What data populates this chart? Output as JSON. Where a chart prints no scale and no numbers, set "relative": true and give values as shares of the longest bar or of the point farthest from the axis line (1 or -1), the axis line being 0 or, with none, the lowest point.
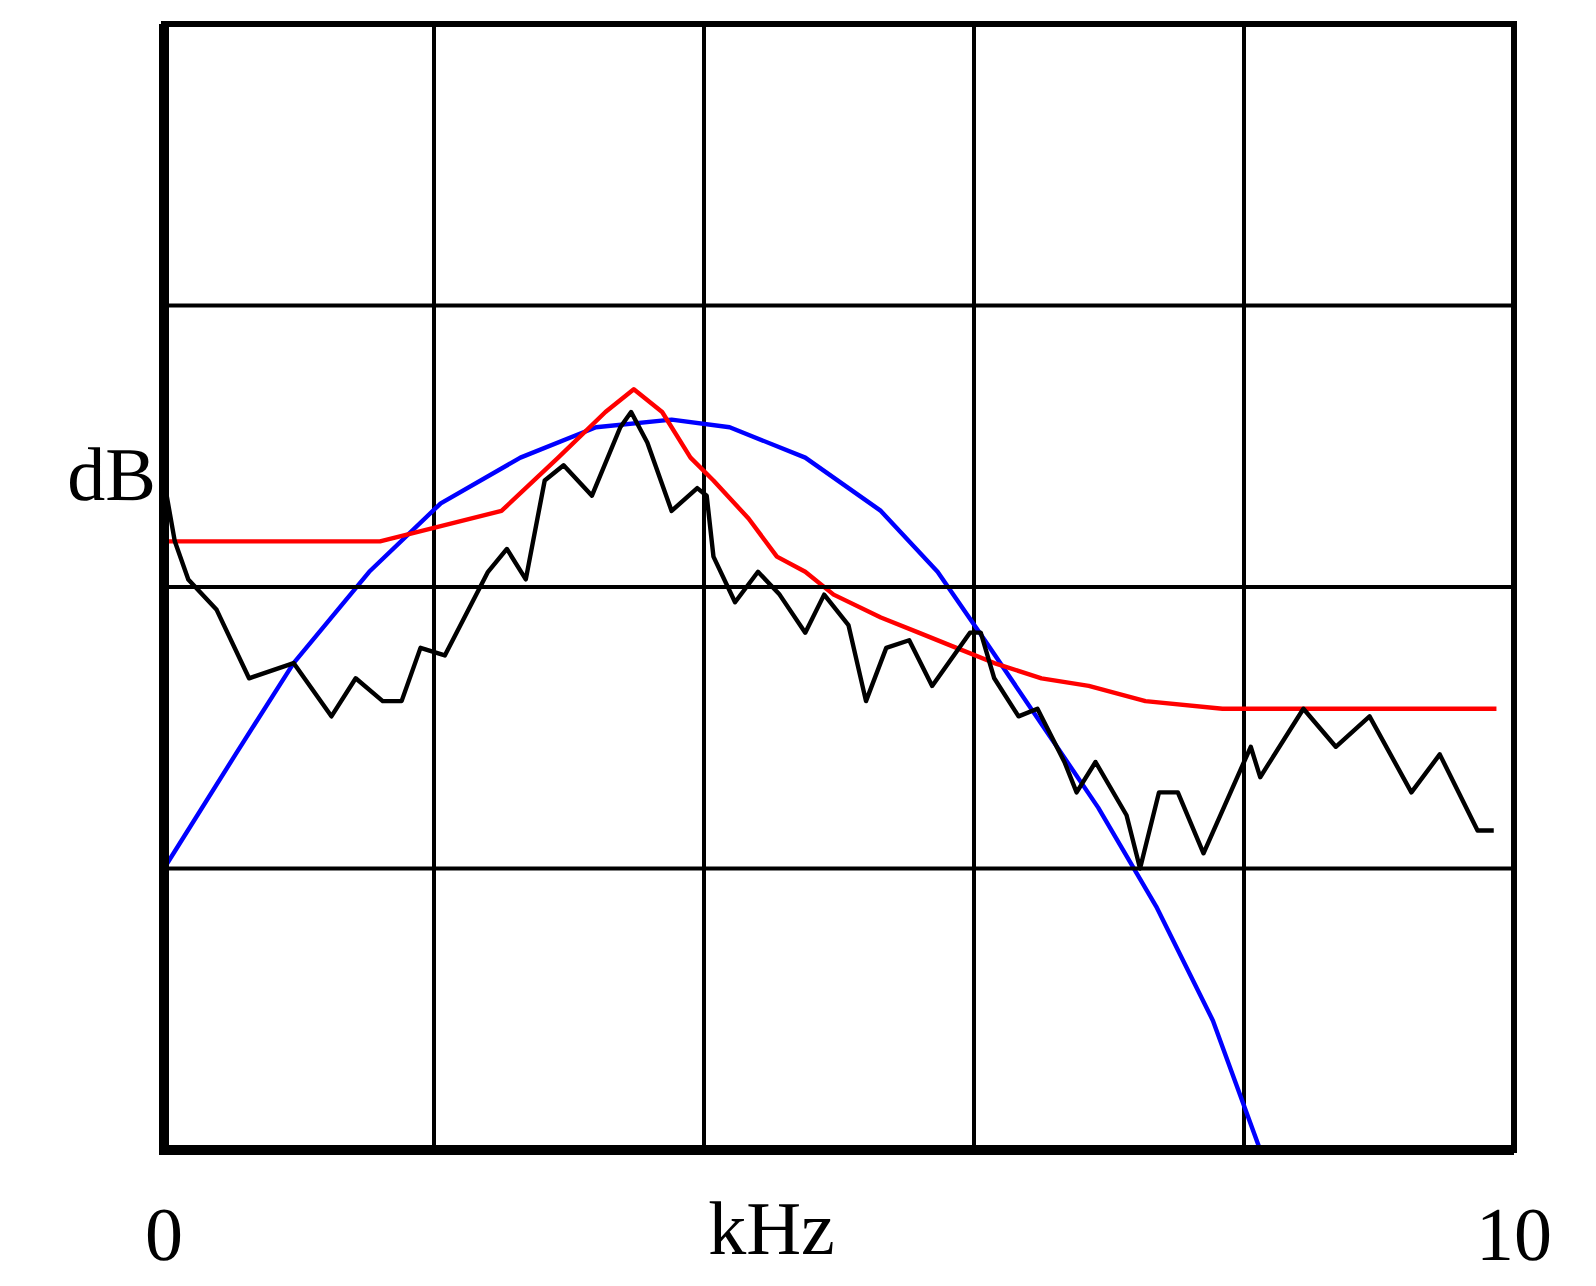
{
  "chart_data": {
    "type": "line",
    "xlabel": "kHz",
    "ylabel": "dB",
    "relative": true,
    "grid": true,
    "legend": false,
    "marker": "none",
    "line_style": "solid",
    "xlim": [
      0,
      10
    ],
    "xticks": [
      0,
      {
        "value": 2,
        "label": null
      },
      {
        "value": 4,
        "label": null
      },
      {
        "value": 6,
        "label": null
      },
      {
        "value": 8,
        "label": null
      },
      10
    ],
    "series": [
      {
        "color": "#000000",
        "x": [
          0,
          0.08,
          0.18,
          0.39,
          0.63,
          0.96,
          1.24,
          1.42,
          1.62,
          1.76,
          1.9,
          2.08,
          2.4,
          2.54,
          2.68,
          2.82,
          2.96,
          3.17,
          3.38,
          3.46,
          3.58,
          3.76,
          3.95,
          4.02,
          4.07,
          4.23,
          4.4,
          4.56,
          4.75,
          4.89,
          5.07,
          5.2,
          5.35,
          5.52,
          5.69,
          5.97,
          6.05,
          6.15,
          6.33,
          6.47,
          6.67,
          6.76,
          6.9,
          7.13,
          7.23,
          7.37,
          7.51,
          7.7,
          8.05,
          8.12,
          8.44,
          8.68,
          8.93,
          9.24,
          9.45,
          9.73,
          9.85
        ],
        "values": [
          0.88,
          0.8,
          0.75,
          0.71,
          0.62,
          0.64,
          0.57,
          0.62,
          0.59,
          0.59,
          0.66,
          0.65,
          0.76,
          0.79,
          0.75,
          0.88,
          0.9,
          0.86,
          0.95,
          0.97,
          0.93,
          0.84,
          0.87,
          0.86,
          0.78,
          0.72,
          0.76,
          0.73,
          0.68,
          0.73,
          0.69,
          0.59,
          0.66,
          0.67,
          0.61,
          0.68,
          0.68,
          0.62,
          0.57,
          0.58,
          0.51,
          0.47,
          0.51,
          0.44,
          0.37,
          0.47,
          0.47,
          0.39,
          0.53,
          0.49,
          0.58,
          0.53,
          0.57,
          0.47,
          0.52,
          0.42,
          0.42
        ]
      },
      {
        "color": "#ff0000",
        "x": [
          0,
          1.6,
          2.05,
          2.5,
          2.92,
          3.27,
          3.48,
          3.69,
          3.9,
          4.07,
          4.33,
          4.54,
          4.75,
          4.96,
          5.31,
          5.59,
          5.87,
          6.15,
          6.5,
          6.85,
          7.27,
          7.84,
          8.68,
          9.87
        ],
        "values": [
          0.8,
          0.8,
          0.82,
          0.84,
          0.91,
          0.97,
          1,
          0.97,
          0.91,
          0.88,
          0.83,
          0.78,
          0.76,
          0.73,
          0.7,
          0.68,
          0.66,
          0.64,
          0.62,
          0.61,
          0.59,
          0.58,
          0.58,
          0.58
        ]
      },
      {
        "color": "#0000ff",
        "x": [
          0,
          0.53,
          0.96,
          1.52,
          2.05,
          2.64,
          3.2,
          3.76,
          4.19,
          4.75,
          5.31,
          5.73,
          6.08,
          6.5,
          6.92,
          7.35,
          7.77,
          8.12
        ],
        "values": [
          0.37,
          0.52,
          0.64,
          0.76,
          0.85,
          0.91,
          0.95,
          0.96,
          0.95,
          0.91,
          0.84,
          0.76,
          0.67,
          0.56,
          0.45,
          0.32,
          0.17,
          0
        ]
      }
    ]
  }
}
